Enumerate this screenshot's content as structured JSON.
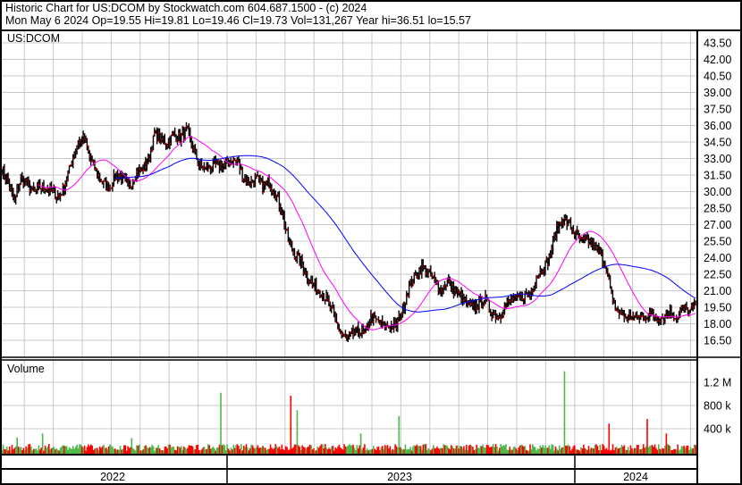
{
  "header": {
    "title": "Historic Chart for US:DCOM by Stockwatch.com 604.687.1500 - (c) 2024",
    "quote": "Mon May  6 2024   Op=19.55   Hi=19.81   Lo=19.46   Cl=19.73   Vol=131,267   Year hi=36.51   lo=15.57"
  },
  "colors": {
    "up": "#4cb848",
    "down": "#ff0000",
    "close_tick": "#ff0000",
    "bar": "#000000",
    "ma_short": "#ff00ff",
    "ma_long": "#0000ff",
    "grid": "#c8c8c8"
  },
  "chart_data": [
    {
      "type": "line",
      "title": "US:DCOM",
      "series_kind": "daily OHLC bars with moving averages",
      "y_ticks": [
        "43.50",
        "42.00",
        "40.50",
        "39.00",
        "37.50",
        "36.00",
        "34.50",
        "33.00",
        "31.50",
        "30.00",
        "28.50",
        "27.00",
        "25.50",
        "24.00",
        "22.50",
        "21.00",
        "19.50",
        "18.00",
        "16.50"
      ],
      "ylim": [
        15.5,
        45
      ],
      "grid": true,
      "weekly_close": [
        32.0,
        30.8,
        29.1,
        31.2,
        30.7,
        29.9,
        30.4,
        30.4,
        29.9,
        29.5,
        30.7,
        32.8,
        34.4,
        34.8,
        32.8,
        31.6,
        30.7,
        30.4,
        31.6,
        31.2,
        30.4,
        31.6,
        32.0,
        32.8,
        35.2,
        34.8,
        34.4,
        35.2,
        34.8,
        35.6,
        34.0,
        32.4,
        32.0,
        32.4,
        32.4,
        32.4,
        32.8,
        32.8,
        31.2,
        30.8,
        31.2,
        30.4,
        30.8,
        29.9,
        28.3,
        25.5,
        24.3,
        23.5,
        22.3,
        21.4,
        21.0,
        20.2,
        19.0,
        17.4,
        16.6,
        17.0,
        17.4,
        17.0,
        18.6,
        18.2,
        17.8,
        17.8,
        17.8,
        19.4,
        21.4,
        22.3,
        23.1,
        22.7,
        21.9,
        21.0,
        21.9,
        21.0,
        20.6,
        19.8,
        19.4,
        19.8,
        20.2,
        19.0,
        18.6,
        19.4,
        20.2,
        20.2,
        20.6,
        20.6,
        22.3,
        23.1,
        23.9,
        26.3,
        27.5,
        27.1,
        26.3,
        25.5,
        25.5,
        25.1,
        24.3,
        23.1,
        19.8,
        19.0,
        18.6,
        18.6,
        18.6,
        18.6,
        19.0,
        18.6,
        18.6,
        19.0,
        18.6,
        19.4,
        19.0,
        19.73
      ],
      "moving_averages": [
        "short (magenta)",
        "long (blue)"
      ]
    },
    {
      "type": "bar",
      "title": "Volume",
      "y_ticks": [
        "1.2 M",
        "800 k",
        "400 k"
      ],
      "ylim": [
        0,
        1600000
      ],
      "typical_volume": 130000,
      "volume_spikes": [
        {
          "week": 6,
          "volume": 350000
        },
        {
          "week": 2,
          "volume": 280000
        },
        {
          "week": 20,
          "volume": 270000
        },
        {
          "week": 34,
          "volume": 1050000
        },
        {
          "week": 45,
          "volume": 1000000
        },
        {
          "week": 46,
          "volume": 750000
        },
        {
          "week": 62,
          "volume": 650000
        },
        {
          "week": 56,
          "volume": 350000
        },
        {
          "week": 88,
          "volume": 1420000
        },
        {
          "week": 95,
          "volume": 520000
        },
        {
          "week": 101,
          "volume": 600000
        },
        {
          "week": 104,
          "volume": 350000
        }
      ]
    }
  ],
  "x_axis": {
    "years": [
      "2022",
      "2023",
      "2024"
    ]
  }
}
